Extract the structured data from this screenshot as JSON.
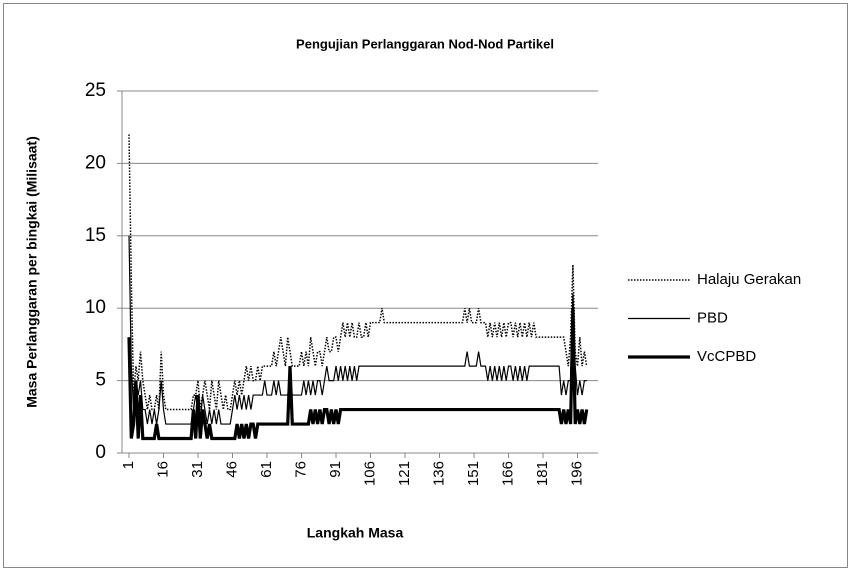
{
  "chart_data": {
    "type": "line",
    "title": "Pengujian Perlanggaran Nod-Nod Partikel",
    "x_label": "Langkah Masa",
    "y_label": "Masa Perlanggaran per bingkai (Milisaat)",
    "ylim": [
      0,
      25
    ],
    "yticks": [
      0,
      5,
      10,
      15,
      20,
      25
    ],
    "grid": true,
    "legend": "right",
    "categories": [
      1,
      null,
      null,
      null,
      null,
      null,
      null,
      null,
      null,
      null,
      null,
      null,
      null,
      null,
      null,
      16,
      null,
      null,
      null,
      null,
      null,
      null,
      null,
      null,
      null,
      null,
      null,
      null,
      null,
      null,
      31,
      null,
      null,
      null,
      null,
      null,
      null,
      null,
      null,
      null,
      null,
      null,
      null,
      null,
      null,
      46,
      null,
      null,
      null,
      null,
      null,
      null,
      null,
      null,
      null,
      null,
      null,
      null,
      null,
      null,
      61,
      null,
      null,
      null,
      null,
      null,
      null,
      null,
      null,
      null,
      null,
      null,
      null,
      null,
      null,
      76,
      null,
      null,
      null,
      null,
      null,
      null,
      null,
      null,
      null,
      null,
      null,
      null,
      null,
      null,
      91,
      null,
      null,
      null,
      null,
      null,
      null,
      null,
      null,
      null,
      null,
      null,
      null,
      null,
      null,
      106,
      null,
      null,
      null,
      null,
      null,
      null,
      null,
      null,
      null,
      null,
      null,
      null,
      null,
      null,
      121,
      null,
      null,
      null,
      null,
      null,
      null,
      null,
      null,
      null,
      null,
      null,
      null,
      null,
      null,
      136,
      null,
      null,
      null,
      null,
      null,
      null,
      null,
      null,
      null,
      null,
      null,
      null,
      null,
      null,
      151,
      null,
      null,
      null,
      null,
      null,
      null,
      null,
      null,
      null,
      null,
      null,
      null,
      null,
      null,
      166,
      null,
      null,
      null,
      null,
      null,
      null,
      null,
      null,
      null,
      null,
      null,
      null,
      null,
      null,
      181,
      null,
      null,
      null,
      null,
      null,
      null,
      null,
      null,
      null,
      null,
      null,
      null,
      null,
      null,
      196,
      null,
      null,
      null,
      null
    ],
    "series": [
      {
        "name": "Halaju Gerakan",
        "color": "#000000",
        "line_style": "dotted",
        "line_width": 1.5,
        "values": [
          22,
          12,
          4,
          6,
          5,
          7,
          5,
          4,
          3,
          4,
          3,
          3,
          4,
          3,
          7,
          4,
          3,
          3,
          3,
          3,
          3,
          3,
          3,
          3,
          3,
          3,
          3,
          3,
          4,
          4,
          5,
          3,
          4,
          5,
          4,
          3,
          5,
          4,
          3,
          5,
          4,
          3,
          4,
          3,
          3,
          4,
          5,
          4,
          5,
          4,
          5,
          6,
          5,
          6,
          5,
          5,
          6,
          5,
          6,
          6,
          6,
          6,
          6,
          7,
          6,
          7,
          8,
          7,
          6,
          8,
          7,
          6,
          6,
          6,
          6,
          7,
          6,
          7,
          6,
          8,
          7,
          6,
          7,
          7,
          6,
          7,
          8,
          7,
          7,
          8,
          8,
          7,
          8,
          9,
          8,
          9,
          8,
          9,
          8,
          8,
          9,
          8,
          8,
          9,
          8,
          9,
          9,
          9,
          9,
          9,
          10,
          9,
          9,
          9,
          9,
          9,
          9,
          9,
          9,
          9,
          9,
          9,
          9,
          9,
          9,
          9,
          9,
          9,
          9,
          9,
          9,
          9,
          9,
          9,
          9,
          9,
          9,
          9,
          9,
          9,
          9,
          9,
          9,
          9,
          9,
          9,
          10,
          9,
          10,
          9,
          9,
          9,
          10,
          9,
          9,
          9,
          8,
          9,
          8,
          9,
          8,
          9,
          8,
          9,
          8,
          9,
          9,
          8,
          9,
          8,
          9,
          8,
          9,
          8,
          9,
          8,
          9,
          8,
          8,
          8,
          8,
          8,
          8,
          8,
          8,
          8,
          8,
          8,
          8,
          8,
          7,
          6,
          8,
          13,
          7,
          6,
          8,
          6,
          7,
          6
        ]
      },
      {
        "name": "PBD",
        "color": "#000000",
        "line_style": "solid",
        "line_width": 1.2,
        "values": [
          15,
          6,
          3,
          5,
          4,
          5,
          3,
          3,
          2,
          3,
          2,
          3,
          2,
          3,
          5,
          3,
          2,
          2,
          2,
          2,
          2,
          2,
          2,
          2,
          2,
          2,
          2,
          2,
          3,
          4,
          3,
          2,
          4,
          3,
          2,
          3,
          2,
          3,
          2,
          3,
          2,
          2,
          2,
          2,
          2,
          3,
          4,
          3,
          4,
          3,
          4,
          3,
          4,
          3,
          4,
          4,
          4,
          4,
          4,
          5,
          4,
          4,
          4,
          5,
          4,
          5,
          4,
          4,
          4,
          4,
          5,
          4,
          4,
          4,
          4,
          4,
          5,
          4,
          5,
          4,
          5,
          4,
          5,
          5,
          4,
          5,
          6,
          5,
          5,
          5,
          6,
          5,
          6,
          5,
          6,
          5,
          6,
          5,
          6,
          5,
          6,
          6,
          6,
          6,
          6,
          6,
          6,
          6,
          6,
          6,
          6,
          6,
          6,
          6,
          6,
          6,
          6,
          6,
          6,
          6,
          6,
          6,
          6,
          6,
          6,
          6,
          6,
          6,
          6,
          6,
          6,
          6,
          6,
          6,
          6,
          6,
          6,
          6,
          6,
          6,
          6,
          6,
          6,
          6,
          6,
          6,
          6,
          7,
          6,
          6,
          6,
          6,
          7,
          6,
          6,
          6,
          5,
          6,
          5,
          6,
          5,
          6,
          5,
          6,
          5,
          6,
          6,
          5,
          6,
          5,
          6,
          5,
          6,
          5,
          6,
          6,
          6,
          6,
          6,
          6,
          6,
          6,
          6,
          6,
          6,
          6,
          6,
          6,
          4,
          5,
          4,
          5,
          5,
          11,
          6,
          4,
          5,
          4,
          5,
          5
        ]
      },
      {
        "name": "VcCPBD",
        "color": "#000000",
        "line_style": "solid",
        "line_width": 3.2,
        "values": [
          8,
          1,
          2,
          5,
          1,
          4,
          1,
          1,
          1,
          1,
          1,
          1,
          2,
          1,
          1,
          1,
          1,
          1,
          1,
          1,
          1,
          1,
          1,
          1,
          1,
          1,
          1,
          1,
          3,
          1,
          4,
          1,
          3,
          2,
          1,
          2,
          1,
          1,
          1,
          1,
          1,
          1,
          1,
          1,
          1,
          1,
          1,
          2,
          1,
          2,
          1,
          2,
          1,
          2,
          2,
          1,
          2,
          2,
          2,
          2,
          2,
          2,
          2,
          2,
          2,
          2,
          2,
          2,
          2,
          2,
          6,
          2,
          2,
          2,
          2,
          2,
          2,
          2,
          2,
          3,
          2,
          3,
          2,
          3,
          2,
          3,
          3,
          2,
          3,
          2,
          3,
          2,
          3,
          3,
          3,
          3,
          3,
          3,
          3,
          3,
          3,
          3,
          3,
          3,
          3,
          3,
          3,
          3,
          3,
          3,
          3,
          3,
          3,
          3,
          3,
          3,
          3,
          3,
          3,
          3,
          3,
          3,
          3,
          3,
          3,
          3,
          3,
          3,
          3,
          3,
          3,
          3,
          3,
          3,
          3,
          3,
          3,
          3,
          3,
          3,
          3,
          3,
          3,
          3,
          3,
          3,
          3,
          3,
          3,
          3,
          3,
          3,
          3,
          3,
          3,
          3,
          3,
          3,
          3,
          3,
          3,
          3,
          3,
          3,
          3,
          3,
          3,
          3,
          3,
          3,
          3,
          3,
          3,
          3,
          3,
          3,
          3,
          3,
          3,
          3,
          3,
          3,
          3,
          3,
          3,
          3,
          3,
          3,
          2,
          3,
          2,
          3,
          2,
          10,
          2,
          3,
          2,
          3,
          2,
          3
        ]
      }
    ]
  }
}
